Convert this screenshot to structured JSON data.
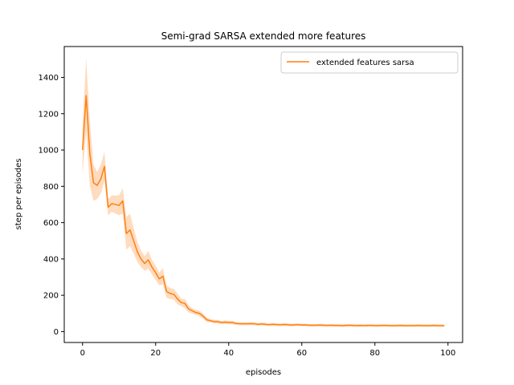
{
  "chart_data": {
    "type": "line",
    "title": "Semi-grad SARSA extended more features",
    "xlabel": "episodes",
    "ylabel": "step per episodes",
    "xlim": [
      -5,
      104
    ],
    "ylim": [
      -60,
      1570
    ],
    "xticks": [
      0,
      20,
      40,
      60,
      80,
      100
    ],
    "yticks": [
      0,
      200,
      400,
      600,
      800,
      1000,
      1200,
      1400
    ],
    "grid": false,
    "legend_position": "top-right",
    "series": [
      {
        "name": "extended features sarsa",
        "color": "#ff7f0e",
        "band_color": "#ffdcbf",
        "x": [
          0,
          1,
          2,
          3,
          4,
          5,
          6,
          7,
          8,
          9,
          10,
          11,
          12,
          13,
          14,
          15,
          16,
          17,
          18,
          19,
          20,
          21,
          22,
          23,
          24,
          25,
          26,
          27,
          28,
          29,
          30,
          31,
          32,
          33,
          34,
          35,
          36,
          37,
          38,
          39,
          40,
          41,
          42,
          43,
          44,
          45,
          46,
          47,
          48,
          49,
          50,
          51,
          52,
          53,
          54,
          55,
          56,
          57,
          58,
          59,
          60,
          61,
          62,
          63,
          64,
          65,
          66,
          67,
          68,
          69,
          70,
          71,
          72,
          73,
          74,
          75,
          76,
          77,
          78,
          79,
          80,
          81,
          82,
          83,
          84,
          85,
          86,
          87,
          88,
          89,
          90,
          91,
          92,
          93,
          94,
          95,
          96,
          97,
          98,
          99
        ],
        "values": [
          1000,
          1300,
          980,
          820,
          805,
          840,
          910,
          685,
          705,
          700,
          695,
          720,
          540,
          560,
          500,
          440,
          400,
          375,
          395,
          355,
          325,
          290,
          305,
          220,
          210,
          205,
          180,
          160,
          155,
          125,
          115,
          105,
          100,
          85,
          65,
          60,
          55,
          55,
          50,
          52,
          50,
          50,
          45,
          43,
          43,
          43,
          44,
          43,
          40,
          42,
          40,
          38,
          40,
          39,
          37,
          39,
          38,
          36,
          37,
          38,
          36,
          37,
          35,
          35,
          35,
          36,
          35,
          34,
          35,
          34,
          34,
          33,
          34,
          35,
          34,
          33,
          34,
          33,
          34,
          34,
          33,
          33,
          34,
          34,
          33,
          33,
          33,
          34,
          33,
          33,
          33,
          33,
          34,
          33,
          33,
          33,
          34,
          33,
          33,
          33
        ],
        "lower": [
          865,
          1100,
          800,
          720,
          730,
          760,
          830,
          640,
          660,
          650,
          640,
          650,
          450,
          470,
          430,
          385,
          355,
          335,
          345,
          315,
          285,
          255,
          260,
          185,
          180,
          175,
          150,
          140,
          130,
          105,
          100,
          90,
          85,
          70,
          52,
          50,
          45,
          45,
          42,
          42,
          40,
          40,
          37,
          35,
          35,
          35,
          36,
          35,
          32,
          34,
          32,
          30,
          32,
          31,
          30,
          31,
          30,
          29,
          30,
          31,
          29,
          30,
          28,
          28,
          28,
          29,
          28,
          27,
          28,
          27,
          27,
          26,
          27,
          28,
          27,
          26,
          27,
          26,
          27,
          27,
          26,
          26,
          27,
          27,
          26,
          26,
          26,
          27,
          26,
          26,
          26,
          26,
          27,
          26,
          26,
          26,
          27,
          26,
          26,
          26
        ],
        "upper": [
          1135,
          1505,
          1160,
          920,
          880,
          920,
          990,
          730,
          750,
          750,
          750,
          790,
          630,
          650,
          570,
          495,
          445,
          415,
          445,
          395,
          365,
          325,
          350,
          255,
          240,
          235,
          210,
          180,
          180,
          145,
          130,
          120,
          115,
          100,
          78,
          70,
          65,
          65,
          58,
          62,
          60,
          60,
          53,
          51,
          51,
          51,
          52,
          51,
          48,
          50,
          48,
          46,
          48,
          47,
          44,
          47,
          46,
          43,
          44,
          45,
          43,
          44,
          42,
          42,
          42,
          43,
          42,
          41,
          42,
          41,
          41,
          40,
          41,
          42,
          41,
          40,
          41,
          40,
          41,
          41,
          40,
          40,
          41,
          41,
          40,
          40,
          40,
          41,
          40,
          40,
          40,
          40,
          41,
          40,
          40,
          40,
          41,
          40,
          40,
          40
        ]
      }
    ]
  }
}
